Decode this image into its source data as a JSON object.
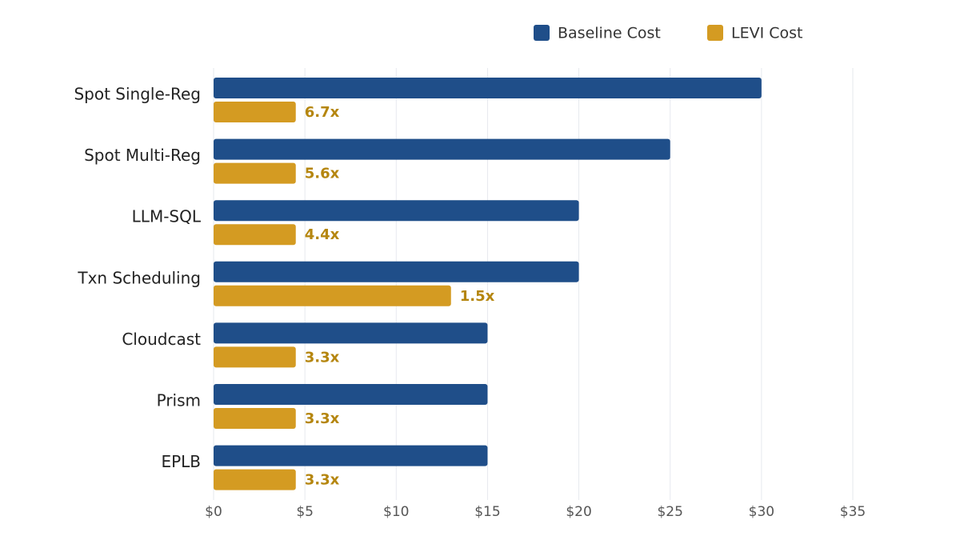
{
  "chart_data": {
    "type": "hbar",
    "categories": [
      "Spot Single-Reg",
      "Spot Multi-Reg",
      "LLM-SQL",
      "Txn Scheduling",
      "Cloudcast",
      "Prism",
      "EPLB"
    ],
    "series": [
      {
        "name": "Baseline Cost",
        "color": "#1f4e89",
        "values": [
          30,
          25,
          20,
          20,
          15,
          15,
          15
        ]
      },
      {
        "name": "LEVI Cost",
        "color": "#d49b22",
        "values": [
          4.5,
          4.5,
          4.5,
          13,
          4.5,
          4.5,
          4.5
        ],
        "annotations": [
          "6.7x",
          "5.6x",
          "4.4x",
          "1.5x",
          "3.3x",
          "3.3x",
          "3.3x"
        ],
        "annotation_color": "#b5860f"
      }
    ],
    "xlim": [
      0,
      35
    ],
    "xticks": [
      {
        "value": 0,
        "label": "$0"
      },
      {
        "value": 5,
        "label": "$5"
      },
      {
        "value": 10,
        "label": "$10"
      },
      {
        "value": 15,
        "label": "$15"
      },
      {
        "value": 20,
        "label": "$20"
      },
      {
        "value": 25,
        "label": "$25"
      },
      {
        "value": 30,
        "label": "$30"
      },
      {
        "value": 35,
        "label": "$35"
      }
    ],
    "grid": true,
    "legend": "top-right"
  }
}
